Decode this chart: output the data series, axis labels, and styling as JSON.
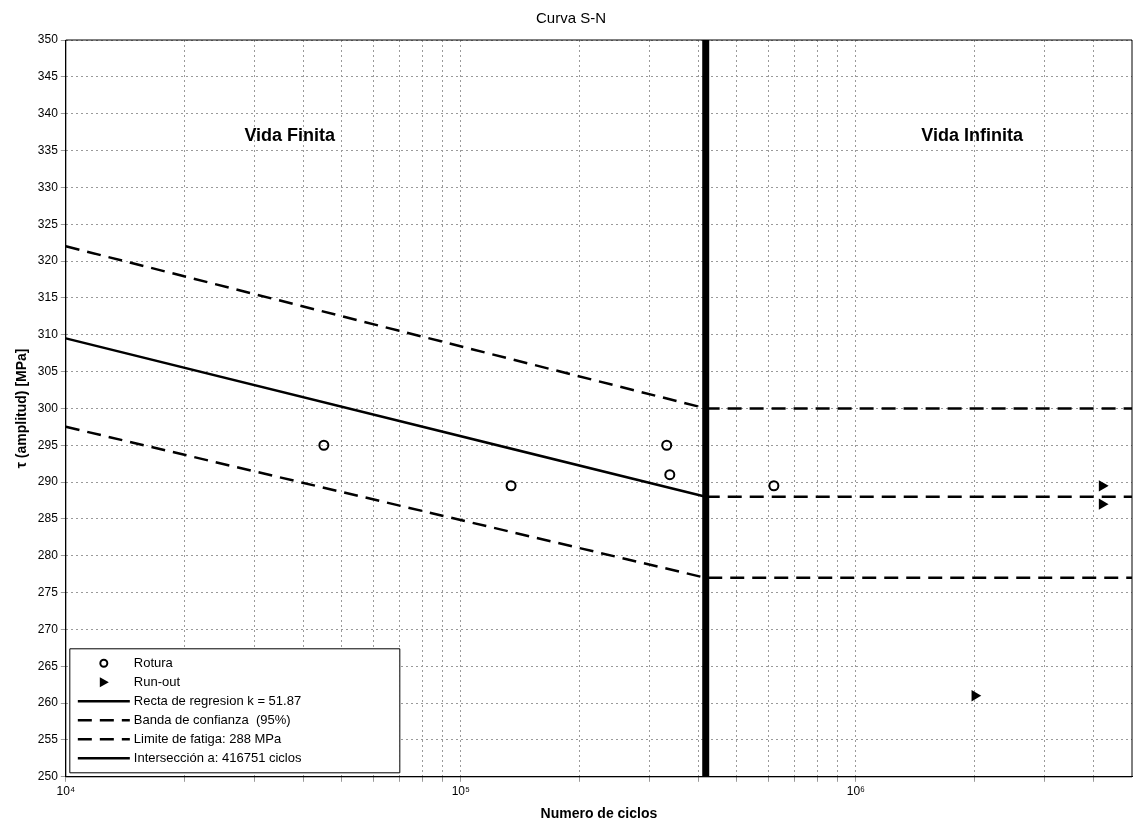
{
  "chart_data": {
    "type": "line",
    "title": "Curva S-N",
    "xlabel": "Numero de ciclos",
    "ylabel": "τ (amplitud) [MPa]",
    "xlim": [
      10000,
      5000000
    ],
    "ylim": [
      250,
      350
    ],
    "log": "x",
    "grid": true,
    "legend": "bottom left",
    "xticks": [
      {
        "value": 10000,
        "label": "10⁴"
      },
      {
        "value": 20000,
        "label": null
      },
      {
        "value": 30000,
        "label": null
      },
      {
        "value": 40000,
        "label": null
      },
      {
        "value": 50000,
        "label": null
      },
      {
        "value": 60000,
        "label": null
      },
      {
        "value": 70000,
        "label": null
      },
      {
        "value": 80000,
        "label": null
      },
      {
        "value": 90000,
        "label": null
      },
      {
        "value": 100000,
        "label": "10⁵"
      },
      {
        "value": 200000,
        "label": null
      },
      {
        "value": 300000,
        "label": null
      },
      {
        "value": 400000,
        "label": null
      },
      {
        "value": 500000,
        "label": null
      },
      {
        "value": 600000,
        "label": null
      },
      {
        "value": 700000,
        "label": null
      },
      {
        "value": 800000,
        "label": null
      },
      {
        "value": 900000,
        "label": null
      },
      {
        "value": 1000000,
        "label": "10⁶"
      },
      {
        "value": 2000000,
        "label": null
      },
      {
        "value": 3000000,
        "label": null
      },
      {
        "value": 4000000,
        "label": null
      }
    ],
    "yticks": [
      250,
      255,
      260,
      265,
      270,
      275,
      280,
      285,
      290,
      295,
      300,
      305,
      310,
      315,
      320,
      325,
      330,
      335,
      340,
      345,
      350
    ],
    "annotations": [
      "Vida Finita",
      "Vida Infinita"
    ],
    "series": [
      {
        "name": "Rotura",
        "type": "scatter",
        "marker": "circle",
        "color": "#000000",
        "x": [
          45000,
          134000,
          332000,
          338000,
          620000
        ],
        "values": [
          295,
          289.5,
          295,
          291,
          289.5
        ]
      },
      {
        "name": "Run-out",
        "type": "scatter",
        "marker": "triangle",
        "color": "#000000",
        "x": [
          4200000,
          4200000,
          2000000
        ],
        "values": [
          289.5,
          287,
          261
        ]
      },
      {
        "name": "Recta de regresion k = 51.87",
        "type": "line",
        "marker": "none",
        "line_style": "solid",
        "color": "#000000",
        "x": [
          10000,
          416751
        ],
        "values": [
          309.5,
          288
        ]
      },
      {
        "name": "Banda de confianza  (95%)",
        "type": "line",
        "marker": "none",
        "line_style": "dashed",
        "color": "#000000",
        "x": [
          10000,
          416751,
          5000000
        ],
        "values": [
          322,
          300,
          300
        ]
      },
      {
        "type": "line",
        "marker": "none",
        "line_style": "dashed",
        "color": "#000000",
        "x": [
          10000,
          416751,
          5000000
        ],
        "values": [
          297.5,
          277,
          277
        ]
      },
      {
        "name": "Limite de fatiga: 288 MPa",
        "type": "line",
        "marker": "none",
        "line_style": "dashed",
        "color": "#000000",
        "x": [
          416751,
          5000000
        ],
        "values": [
          288,
          288
        ]
      },
      {
        "name": "Intersección a: 416751 ciclos",
        "type": "line",
        "marker": "none",
        "line_style": "solid",
        "color": "#000000",
        "x": [
          416751,
          416751
        ],
        "values": [
          250,
          350
        ]
      }
    ]
  }
}
